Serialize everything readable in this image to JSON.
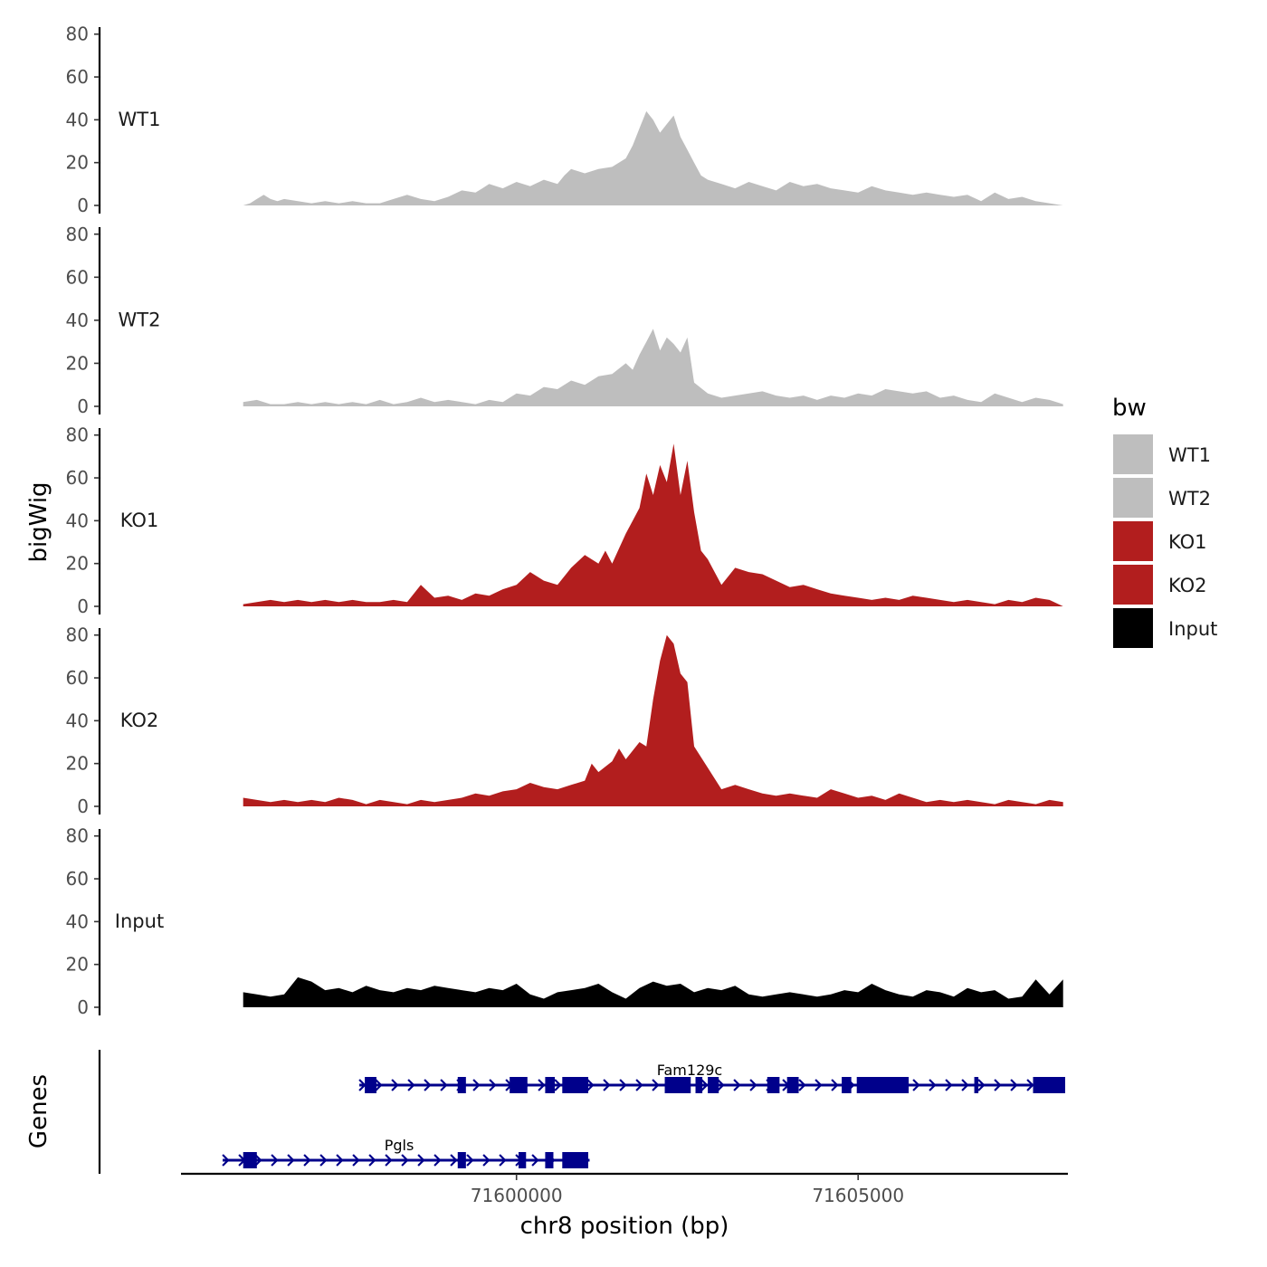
{
  "chart_data": {
    "type": "area",
    "ylabel": "bigWig",
    "genes_label": "Genes",
    "xlabel": "chr8 position (bp)",
    "xlim": [
      71595090,
      71608070
    ],
    "ylim": [
      0,
      82
    ],
    "yticks": [
      0,
      20,
      40,
      60,
      80
    ],
    "xticks": [
      71600000,
      71605000
    ],
    "xtick_labels": [
      "71600000",
      "71605000"
    ],
    "legend": {
      "title": "bw",
      "entries": [
        {
          "label": "WT1",
          "color": "#bebebe"
        },
        {
          "label": "WT2",
          "color": "#bebebe"
        },
        {
          "label": "KO1",
          "color": "#b21e1e"
        },
        {
          "label": "KO2",
          "color": "#b21e1e"
        },
        {
          "label": "Input",
          "color": "#000000"
        }
      ]
    },
    "tracks": [
      {
        "name": "WT1",
        "color": "#bebebe",
        "x": [
          71596000,
          71596100,
          71596200,
          71596300,
          71596400,
          71596500,
          71596600,
          71596800,
          71597000,
          71597200,
          71597400,
          71597600,
          71597800,
          71598000,
          71598200,
          71598400,
          71598600,
          71598800,
          71599000,
          71599200,
          71599400,
          71599500,
          71599600,
          71599800,
          71600000,
          71600200,
          71600400,
          71600600,
          71600700,
          71600800,
          71601000,
          71601200,
          71601400,
          71601600,
          71601700,
          71601800,
          71601900,
          71602000,
          71602100,
          71602200,
          71602300,
          71602400,
          71602500,
          71602600,
          71602700,
          71602800,
          71603000,
          71603200,
          71603400,
          71603600,
          71603800,
          71604000,
          71604200,
          71604400,
          71604600,
          71604800,
          71605000,
          71605200,
          71605400,
          71605600,
          71605800,
          71606000,
          71606200,
          71606400,
          71606600,
          71606800,
          71607000,
          71607200,
          71607400,
          71607600,
          71607800,
          71608000
        ],
        "values": [
          0,
          1,
          3,
          5,
          3,
          2,
          3,
          2,
          1,
          2,
          1,
          2,
          1,
          1,
          3,
          5,
          3,
          2,
          4,
          7,
          6,
          8,
          10,
          8,
          11,
          9,
          12,
          10,
          14,
          17,
          15,
          17,
          18,
          22,
          28,
          36,
          44,
          40,
          34,
          38,
          42,
          32,
          26,
          20,
          14,
          12,
          10,
          8,
          11,
          9,
          7,
          11,
          9,
          10,
          8,
          7,
          6,
          9,
          7,
          6,
          5,
          6,
          5,
          4,
          5,
          2,
          6,
          3,
          4,
          2,
          1,
          0
        ]
      },
      {
        "name": "WT2",
        "color": "#bebebe",
        "x": [
          71596000,
          71596200,
          71596400,
          71596600,
          71596800,
          71597000,
          71597200,
          71597400,
          71597600,
          71597800,
          71598000,
          71598200,
          71598400,
          71598600,
          71598800,
          71599000,
          71599200,
          71599400,
          71599600,
          71599800,
          71600000,
          71600200,
          71600400,
          71600600,
          71600800,
          71601000,
          71601200,
          71601400,
          71601600,
          71601700,
          71601800,
          71601900,
          71602000,
          71602100,
          71602200,
          71602300,
          71602400,
          71602500,
          71602600,
          71602800,
          71603000,
          71603200,
          71603400,
          71603600,
          71603800,
          71604000,
          71604200,
          71604400,
          71604600,
          71604800,
          71605000,
          71605200,
          71605400,
          71605600,
          71605800,
          71606000,
          71606200,
          71606400,
          71606600,
          71606800,
          71607000,
          71607200,
          71607400,
          71607600,
          71607800,
          71608000
        ],
        "values": [
          2,
          3,
          1,
          1,
          2,
          1,
          2,
          1,
          2,
          1,
          3,
          1,
          2,
          4,
          2,
          3,
          2,
          1,
          3,
          2,
          6,
          5,
          9,
          8,
          12,
          10,
          14,
          15,
          20,
          17,
          24,
          30,
          36,
          26,
          32,
          29,
          25,
          32,
          11,
          6,
          4,
          5,
          6,
          7,
          5,
          4,
          5,
          3,
          5,
          4,
          6,
          5,
          8,
          7,
          6,
          7,
          4,
          5,
          3,
          2,
          6,
          4,
          2,
          4,
          3,
          1
        ]
      },
      {
        "name": "KO1",
        "color": "#b21e1e",
        "x": [
          71596000,
          71596200,
          71596400,
          71596600,
          71596800,
          71597000,
          71597200,
          71597400,
          71597600,
          71597800,
          71598000,
          71598200,
          71598400,
          71598600,
          71598800,
          71599000,
          71599200,
          71599400,
          71599600,
          71599800,
          71600000,
          71600200,
          71600400,
          71600600,
          71600800,
          71601000,
          71601200,
          71601300,
          71601400,
          71601600,
          71601700,
          71601800,
          71601900,
          71602000,
          71602100,
          71602200,
          71602300,
          71602400,
          71602500,
          71602600,
          71602700,
          71602800,
          71603000,
          71603200,
          71603400,
          71603600,
          71603800,
          71604000,
          71604200,
          71604400,
          71604600,
          71604800,
          71605000,
          71605200,
          71605400,
          71605600,
          71605800,
          71606000,
          71606200,
          71606400,
          71606600,
          71606800,
          71607000,
          71607200,
          71607400,
          71607600,
          71607800,
          71608000
        ],
        "values": [
          1,
          2,
          3,
          2,
          3,
          2,
          3,
          2,
          3,
          2,
          2,
          3,
          2,
          10,
          4,
          5,
          3,
          6,
          5,
          8,
          10,
          16,
          12,
          10,
          18,
          24,
          20,
          26,
          20,
          34,
          40,
          46,
          62,
          52,
          66,
          58,
          76,
          52,
          68,
          44,
          26,
          22,
          10,
          18,
          16,
          15,
          12,
          9,
          10,
          8,
          6,
          5,
          4,
          3,
          4,
          3,
          5,
          4,
          3,
          2,
          3,
          2,
          1,
          3,
          2,
          4,
          3,
          0
        ]
      },
      {
        "name": "KO2",
        "color": "#b21e1e",
        "x": [
          71596000,
          71596200,
          71596400,
          71596600,
          71596800,
          71597000,
          71597200,
          71597400,
          71597600,
          71597800,
          71598000,
          71598200,
          71598400,
          71598600,
          71598800,
          71599000,
          71599200,
          71599400,
          71599600,
          71599800,
          71600000,
          71600200,
          71600400,
          71600600,
          71600800,
          71601000,
          71601100,
          71601200,
          71601400,
          71601500,
          71601600,
          71601800,
          71601900,
          71602000,
          71602100,
          71602200,
          71602300,
          71602400,
          71602500,
          71602600,
          71602800,
          71603000,
          71603200,
          71603400,
          71603600,
          71603800,
          71604000,
          71604200,
          71604400,
          71604600,
          71604800,
          71605000,
          71605200,
          71605400,
          71605600,
          71605800,
          71606000,
          71606200,
          71606400,
          71606600,
          71606800,
          71607000,
          71607200,
          71607400,
          71607600,
          71607800,
          71608000
        ],
        "values": [
          4,
          3,
          2,
          3,
          2,
          3,
          2,
          4,
          3,
          1,
          3,
          2,
          1,
          3,
          2,
          3,
          4,
          6,
          5,
          7,
          8,
          11,
          9,
          8,
          10,
          12,
          20,
          16,
          21,
          27,
          22,
          30,
          28,
          50,
          68,
          80,
          76,
          62,
          58,
          28,
          18,
          8,
          10,
          8,
          6,
          5,
          6,
          5,
          4,
          8,
          6,
          4,
          5,
          3,
          6,
          4,
          2,
          3,
          2,
          3,
          2,
          1,
          3,
          2,
          1,
          3,
          2
        ]
      },
      {
        "name": "Input",
        "color": "#000000",
        "x": [
          71596000,
          71596200,
          71596400,
          71596600,
          71596800,
          71597000,
          71597200,
          71597400,
          71597600,
          71597800,
          71598000,
          71598200,
          71598400,
          71598600,
          71598800,
          71599000,
          71599200,
          71599400,
          71599600,
          71599800,
          71600000,
          71600200,
          71600400,
          71600600,
          71600800,
          71601000,
          71601200,
          71601400,
          71601600,
          71601800,
          71602000,
          71602200,
          71602400,
          71602600,
          71602800,
          71603000,
          71603200,
          71603400,
          71603600,
          71603800,
          71604000,
          71604200,
          71604400,
          71604600,
          71604800,
          71605000,
          71605200,
          71605400,
          71605600,
          71605800,
          71606000,
          71606200,
          71606400,
          71606600,
          71606800,
          71607000,
          71607200,
          71607400,
          71607600,
          71607800,
          71608000
        ],
        "values": [
          7,
          6,
          5,
          6,
          14,
          12,
          8,
          9,
          7,
          10,
          8,
          7,
          9,
          8,
          10,
          9,
          8,
          7,
          9,
          8,
          11,
          6,
          4,
          7,
          8,
          9,
          11,
          7,
          4,
          9,
          12,
          10,
          11,
          7,
          9,
          8,
          10,
          6,
          5,
          6,
          7,
          6,
          5,
          6,
          8,
          7,
          11,
          8,
          6,
          5,
          8,
          7,
          5,
          9,
          7,
          8,
          4,
          5,
          13,
          6,
          13
        ]
      }
    ],
    "genes": [
      {
        "name": "Fam129c",
        "start": 71597700,
        "end": 71608030,
        "strand": "+",
        "exons": [
          [
            71597780,
            71597950
          ],
          [
            71599140,
            71599260
          ],
          [
            71599900,
            71600160
          ],
          [
            71600420,
            71600560
          ],
          [
            71600670,
            71601050
          ],
          [
            71602170,
            71602550
          ],
          [
            71602620,
            71602720
          ],
          [
            71602800,
            71602960
          ],
          [
            71603670,
            71603850
          ],
          [
            71603960,
            71604130
          ],
          [
            71604760,
            71604900
          ],
          [
            71604980,
            71605740
          ],
          [
            71606700,
            71606760
          ],
          [
            71607560,
            71608030
          ]
        ]
      },
      {
        "name": "Pgls",
        "start": 71595700,
        "end": 71601070,
        "strand": "+",
        "exons": [
          [
            71596000,
            71596200
          ],
          [
            71599140,
            71599260
          ],
          [
            71600030,
            71600140
          ],
          [
            71600420,
            71600540
          ],
          [
            71600670,
            71601050
          ]
        ]
      }
    ]
  }
}
